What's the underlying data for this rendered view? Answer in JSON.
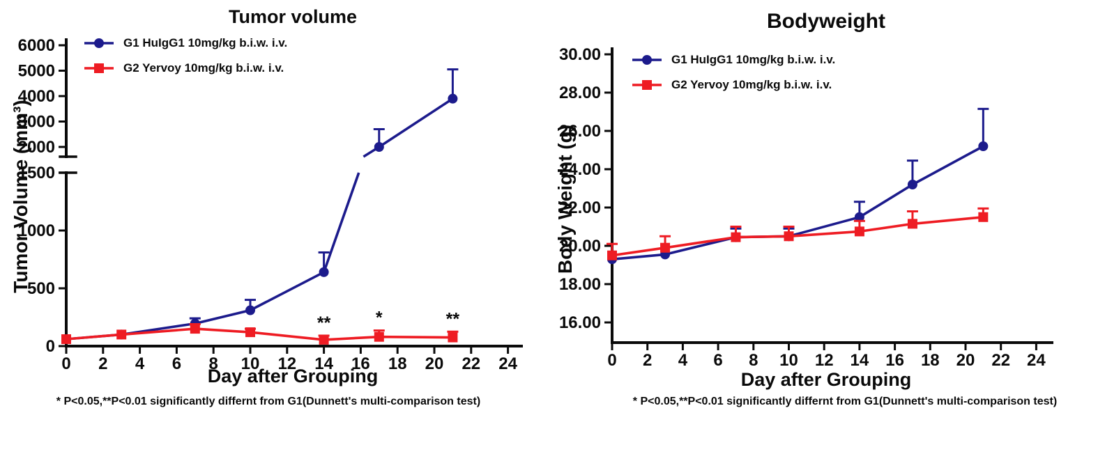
{
  "page": {
    "background": "#ffffff"
  },
  "chart_data": [
    {
      "id": "tumor-volume",
      "type": "line",
      "title": "Tumor volume",
      "xlabel": "Day after Grouping",
      "ylabel": "Tumor Volume (mm³)",
      "annotation": "* P<0.05,**P<0.01 significantly differnt from G1(Dunnett's multi-comparison test)",
      "grid": false,
      "legend_position": "inside-top-left",
      "x": [
        0,
        3,
        7,
        10,
        14,
        17,
        21
      ],
      "x_ticks": [
        0,
        2,
        4,
        6,
        8,
        10,
        12,
        14,
        16,
        18,
        20,
        22,
        24
      ],
      "x_tick_labels": [
        "0",
        "2",
        "4",
        "6",
        "8",
        "10",
        "12",
        "14",
        "16",
        "18",
        "20",
        "22",
        "24"
      ],
      "xlim": [
        0,
        25
      ],
      "axis_break": true,
      "y_segments": [
        {
          "range": [
            0,
            1500
          ],
          "ticks": [
            0,
            500,
            1000,
            1500
          ],
          "labels": [
            "0",
            "500",
            "1000",
            "1500"
          ]
        },
        {
          "range": [
            2000,
            6000
          ],
          "ticks": [
            2000,
            3000,
            4000,
            5000,
            6000
          ],
          "labels": [
            "2000",
            "3000",
            "4000",
            "5000",
            "6000"
          ]
        }
      ],
      "series": [
        {
          "name": "G1 HuIgG1 10mg/kg b.i.w. i.v.",
          "color": "#1c1b8c",
          "marker": "circle",
          "values": [
            60,
            100,
            195,
            310,
            640,
            2000,
            3900
          ],
          "err_up": [
            0,
            0,
            45,
            90,
            170,
            700,
            1150
          ]
        },
        {
          "name": "G2 Yervoy 10mg/kg b.i.w. i.v.",
          "color": "#ee1c23",
          "marker": "square",
          "values": [
            60,
            100,
            150,
            120,
            55,
            80,
            75
          ],
          "err_up": [
            0,
            0,
            40,
            30,
            35,
            55,
            50
          ],
          "sig": [
            "",
            "",
            "",
            "",
            "**",
            "*",
            "**"
          ]
        }
      ]
    },
    {
      "id": "bodyweight",
      "type": "line",
      "title": "Bodyweight",
      "xlabel": "Day after Grouping",
      "ylabel": "Body Weight (g)",
      "annotation": "* P<0.05,**P<0.01 significantly differnt from G1(Dunnett's multi-comparison test)",
      "grid": false,
      "legend_position": "inside-top-left",
      "x": [
        0,
        3,
        7,
        10,
        14,
        17,
        21
      ],
      "x_ticks": [
        0,
        2,
        4,
        6,
        8,
        10,
        12,
        14,
        16,
        18,
        20,
        22,
        24
      ],
      "x_tick_labels": [
        "0",
        "2",
        "4",
        "6",
        "8",
        "10",
        "12",
        "14",
        "16",
        "18",
        "20",
        "22",
        "24"
      ],
      "xlim": [
        0,
        25
      ],
      "axis_break": false,
      "y_segments": [
        {
          "range": [
            16,
            30
          ],
          "ticks": [
            16,
            18,
            20,
            22,
            24,
            26,
            28,
            30
          ],
          "labels": [
            "16.00",
            "18.00",
            "20.00",
            "22.00",
            "24.00",
            "26.00",
            "28.00",
            "30.00"
          ]
        }
      ],
      "series": [
        {
          "name": "G1 HuIgG1 10mg/kg b.i.w. i.v.",
          "color": "#1c1b8c",
          "marker": "circle",
          "values": [
            19.3,
            19.55,
            20.45,
            20.5,
            21.5,
            23.2,
            25.2
          ],
          "err_up": [
            0,
            0,
            0.45,
            0.4,
            0.8,
            1.25,
            1.95
          ]
        },
        {
          "name": "G2 Yervoy 10mg/kg b.i.w. i.v.",
          "color": "#ee1c23",
          "marker": "square",
          "values": [
            19.5,
            19.9,
            20.45,
            20.5,
            20.75,
            21.15,
            21.5
          ],
          "err_up": [
            0.6,
            0.6,
            0.55,
            0.5,
            0.55,
            0.65,
            0.45
          ]
        }
      ]
    }
  ]
}
